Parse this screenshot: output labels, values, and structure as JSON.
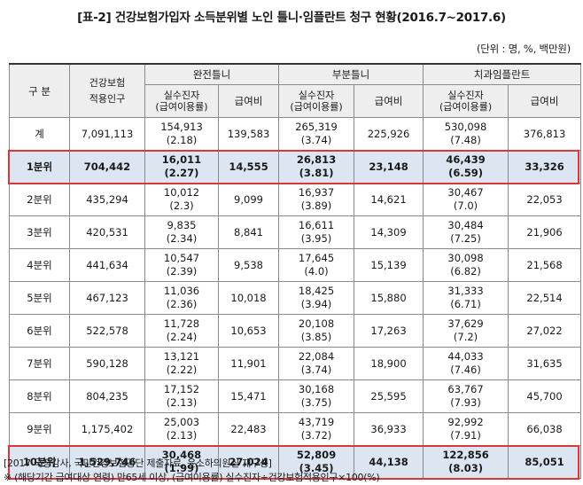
{
  "title": "[표-2] 건강보험가입자 소득분위별 노인 틀니·임플란트 청구 현황(2016.7~2017.6)",
  "unit": "(단위 : 명, %, 백만원)",
  "headers": {
    "group": "구  분",
    "insured": "건강보험\n적용인구",
    "full_denture": "완전틀니",
    "partial_denture": "부분틀니",
    "implant": "치과임플란트",
    "patients": "실수진자\n(급여이용률)",
    "cost": "급여비"
  },
  "rows": [
    {
      "label": "계",
      "insured": "7,091,113",
      "fd_n": "154,913",
      "fd_r": "(2.18)",
      "fd_c": "139,583",
      "pd_n": "265,319",
      "pd_r": "(3.74)",
      "pd_c": "225,926",
      "im_n": "530,098",
      "im_r": "(7.48)",
      "im_c": "376,813"
    },
    {
      "label": "1분위",
      "insured": "704,442",
      "fd_n": "16,011",
      "fd_r": "(2.27)",
      "fd_c": "14,555",
      "pd_n": "26,813",
      "pd_r": "(3.81)",
      "pd_c": "23,148",
      "im_n": "46,439",
      "im_r": "(6.59)",
      "im_c": "33,326"
    },
    {
      "label": "2분위",
      "insured": "435,294",
      "fd_n": "10,012",
      "fd_r": "(2.3)",
      "fd_c": "9,099",
      "pd_n": "16,937",
      "pd_r": "(3.89)",
      "pd_c": "14,621",
      "im_n": "30,467",
      "im_r": "(7.0)",
      "im_c": "22,053"
    },
    {
      "label": "3분위",
      "insured": "420,531",
      "fd_n": "9,835",
      "fd_r": "(2.34)",
      "fd_c": "8,841",
      "pd_n": "16,611",
      "pd_r": "(3.95)",
      "pd_c": "14,309",
      "im_n": "30,484",
      "im_r": "(7.25)",
      "im_c": "21,906"
    },
    {
      "label": "4분위",
      "insured": "441,634",
      "fd_n": "10,547",
      "fd_r": "(2.39)",
      "fd_c": "9,538",
      "pd_n": "17,645",
      "pd_r": "(4.0)",
      "pd_c": "15,139",
      "im_n": "30,098",
      "im_r": "(6.82)",
      "im_c": "21,568"
    },
    {
      "label": "5분위",
      "insured": "467,123",
      "fd_n": "11,036",
      "fd_r": "(2.36)",
      "fd_c": "10,018",
      "pd_n": "18,425",
      "pd_r": "(3.94)",
      "pd_c": "15,880",
      "im_n": "31,333",
      "im_r": "(6.71)",
      "im_c": "22,514"
    },
    {
      "label": "6분위",
      "insured": "522,578",
      "fd_n": "11,728",
      "fd_r": "(2.24)",
      "fd_c": "10,653",
      "pd_n": "20,108",
      "pd_r": "(3.85)",
      "pd_c": "17,263",
      "im_n": "37,629",
      "im_r": "(7.2)",
      "im_c": "27,022"
    },
    {
      "label": "7분위",
      "insured": "590,128",
      "fd_n": "13,121",
      "fd_r": "(2.22)",
      "fd_c": "11,901",
      "pd_n": "22,084",
      "pd_r": "(3.74)",
      "pd_c": "18,900",
      "im_n": "44,033",
      "im_r": "(7.46)",
      "im_c": "31,635"
    },
    {
      "label": "8분위",
      "insured": "804,235",
      "fd_n": "17,152",
      "fd_r": "(2.13)",
      "fd_c": "15,471",
      "pd_n": "30,168",
      "pd_r": "(3.75)",
      "pd_c": "25,595",
      "im_n": "63,767",
      "im_r": "(7.93)",
      "im_c": "45,700"
    },
    {
      "label": "9분위",
      "insured": "1,175,402",
      "fd_n": "25,003",
      "fd_r": "(2.13)",
      "fd_c": "22,483",
      "pd_n": "43,719",
      "pd_r": "(3.72)",
      "pd_c": "36,933",
      "im_n": "92,992",
      "im_r": "(7.91)",
      "im_c": "66,038"
    },
    {
      "label": "10분위",
      "insured": "1,529,746",
      "fd_n": "30,468",
      "fd_r": "(1.99)",
      "fd_c": "27,024",
      "pd_n": "52,809",
      "pd_r": "(3.45)",
      "pd_c": "44,138",
      "im_n": "122,856",
      "im_r": "(8.03)",
      "im_c": "85,051"
    }
  ],
  "highlight_color": "#d9383a",
  "highlight_fill": "#dce6f2",
  "notes": {
    "source": "[2017 국정감사, 국민건강보험공단 제출자료, 윤소하의원실 재구성]",
    "definition": "※ (해당기간 급여대상 연령) 만65세 이상, (급여이용률) 실수진자÷건강보험적용인구×100(%)"
  }
}
